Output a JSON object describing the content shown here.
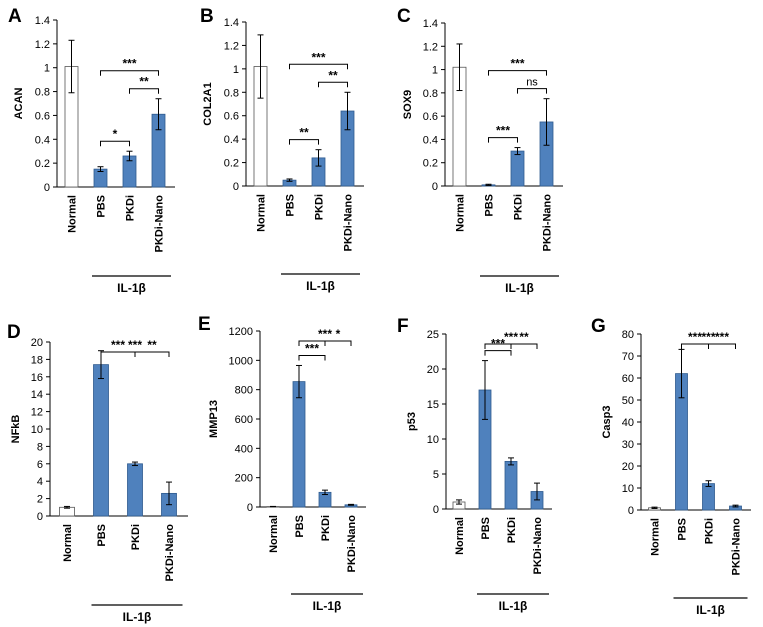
{
  "colors": {
    "filled": "#4f81bd",
    "filled_stroke": "#2f5b8f",
    "hollow": "#ffffff",
    "line": "#000000"
  },
  "group_label": "IL-1β",
  "chart_data": [
    {
      "type": "bar",
      "letter": "A",
      "ylabel": "ACAN",
      "ylim": [
        0,
        1.4
      ],
      "yticks": [
        0,
        0.2,
        0.4,
        0.6,
        0.8,
        1,
        1.2,
        1.4
      ],
      "categories": [
        "Normal",
        "PBS",
        "PKDi",
        "PKDi-Nano"
      ],
      "values": [
        1.01,
        0.15,
        0.26,
        0.61
      ],
      "errors": [
        0.22,
        0.02,
        0.04,
        0.13
      ],
      "significance": [
        {
          "from": 1,
          "to": 2,
          "label": "*"
        },
        {
          "from": 2,
          "to": 3,
          "label": "**"
        },
        {
          "from": 1,
          "to": 3,
          "label": "***"
        }
      ]
    },
    {
      "type": "bar",
      "letter": "B",
      "ylabel": "COL2A1",
      "ylim": [
        0,
        1.4
      ],
      "yticks": [
        0,
        0.2,
        0.4,
        0.6,
        0.8,
        1,
        1.2,
        1.4
      ],
      "categories": [
        "Normal",
        "PBS",
        "PKDi",
        "PKDi-Nano"
      ],
      "values": [
        1.02,
        0.05,
        0.24,
        0.64
      ],
      "errors": [
        0.27,
        0.01,
        0.07,
        0.16
      ],
      "significance": [
        {
          "from": 1,
          "to": 2,
          "label": "**"
        },
        {
          "from": 2,
          "to": 3,
          "label": "**"
        },
        {
          "from": 1,
          "to": 3,
          "label": "***"
        }
      ]
    },
    {
      "type": "bar",
      "letter": "C",
      "ylabel": "SOX9",
      "ylim": [
        0,
        1.4
      ],
      "yticks": [
        0,
        0.2,
        0.4,
        0.6,
        0.8,
        1,
        1.2,
        1.4
      ],
      "categories": [
        "Normal",
        "PBS",
        "PKDi",
        "PKDi-Nano"
      ],
      "values": [
        1.02,
        0.01,
        0.3,
        0.55
      ],
      "errors": [
        0.2,
        0.005,
        0.03,
        0.2
      ],
      "significance": [
        {
          "from": 1,
          "to": 2,
          "label": "***"
        },
        {
          "from": 2,
          "to": 3,
          "label": "ns"
        },
        {
          "from": 1,
          "to": 3,
          "label": "***"
        }
      ]
    },
    {
      "type": "bar",
      "letter": "D",
      "ylabel": "NFkB",
      "ylim": [
        0,
        20
      ],
      "yticks": [
        0,
        2,
        4,
        6,
        8,
        10,
        12,
        14,
        16,
        18,
        20
      ],
      "categories": [
        "Normal",
        "PBS",
        "PKDi",
        "PKDi-Nano"
      ],
      "values": [
        1.0,
        17.4,
        6.0,
        2.6
      ],
      "errors": [
        0.1,
        1.6,
        0.2,
        1.3
      ],
      "significance": [
        {
          "from": 1,
          "to": 2,
          "label": "***"
        },
        {
          "from": 1,
          "to": 3,
          "label": "***"
        },
        {
          "from": 2,
          "to": 3,
          "label": "**"
        }
      ]
    },
    {
      "type": "bar",
      "letter": "E",
      "ylabel": "MMP13",
      "ylim": [
        0,
        1200
      ],
      "yticks": [
        0,
        200,
        400,
        600,
        800,
        1000,
        1200
      ],
      "categories": [
        "Normal",
        "PBS",
        "PKDi",
        "PKDi-Nano"
      ],
      "values": [
        3,
        855,
        100,
        15
      ],
      "errors": [
        1,
        110,
        15,
        3
      ],
      "significance": [
        {
          "from": 1,
          "to": 2,
          "label": "***"
        },
        {
          "from": 1,
          "to": 3,
          "label": "***"
        },
        {
          "from": 2,
          "to": 3,
          "label": "*"
        }
      ]
    },
    {
      "type": "bar",
      "letter": "F",
      "ylabel": "p53",
      "ylim": [
        0,
        25
      ],
      "yticks": [
        0,
        5,
        10,
        15,
        20,
        25
      ],
      "categories": [
        "Normal",
        "PBS",
        "PKDi",
        "PKDi-Nano"
      ],
      "values": [
        1.0,
        17.0,
        6.8,
        2.5
      ],
      "errors": [
        0.3,
        4.2,
        0.5,
        1.2
      ],
      "significance": [
        {
          "from": 1,
          "to": 2,
          "label": "***"
        },
        {
          "from": 1,
          "to": 3,
          "label": "***"
        },
        {
          "from": 2,
          "to": 3,
          "label": "**"
        }
      ]
    },
    {
      "type": "bar",
      "letter": "G",
      "ylabel": "Casp3",
      "ylim": [
        0,
        80
      ],
      "yticks": [
        0,
        10,
        20,
        30,
        40,
        50,
        60,
        70,
        80
      ],
      "categories": [
        "Normal",
        "PBS",
        "PKDi",
        "PKDi-Nano"
      ],
      "values": [
        1.0,
        62.0,
        12.0,
        1.8
      ],
      "errors": [
        0.3,
        11.0,
        1.3,
        0.4
      ],
      "significance": [
        {
          "from": 1,
          "to": 2,
          "label": "***"
        },
        {
          "from": 1,
          "to": 3,
          "label": "***"
        },
        {
          "from": 2,
          "to": 3,
          "label": "***"
        }
      ]
    }
  ]
}
